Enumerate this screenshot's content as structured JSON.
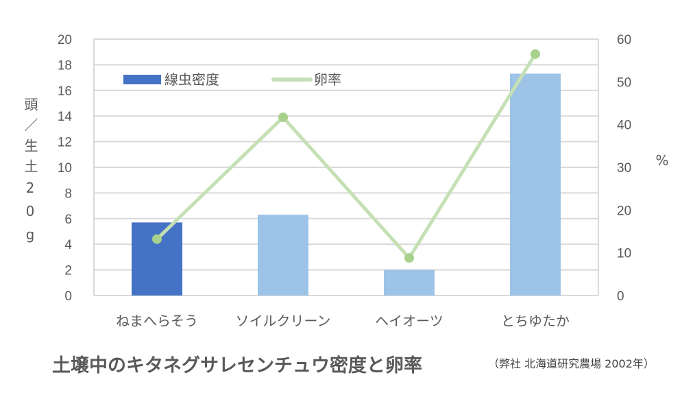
{
  "chart_data": {
    "type": "bar+line",
    "title": "土壌中のキタネグサレセンチュウ密度と卵率",
    "source": "（弊社 北海道研究農場 2002年）",
    "categories": [
      "ねまへらそう",
      "ソイルクリーン",
      "ヘイオーツ",
      "とちゆたか"
    ],
    "series": [
      {
        "name": "線虫密度",
        "type": "bar",
        "axis": "left",
        "values": [
          5.7,
          6.3,
          2.0,
          17.3
        ],
        "colors": [
          "#4472C4",
          "#9DC3E6",
          "#9DC3E6",
          "#9DC3E6"
        ]
      },
      {
        "name": "卵率",
        "type": "line",
        "axis": "right",
        "values": [
          13.2,
          41.7,
          8.8,
          56.5
        ],
        "color": "#C5E0B4",
        "marker_color": "#A9D18E"
      }
    ],
    "ylabel": "頭／生土20g",
    "y2label": "%",
    "ylim": [
      0,
      20
    ],
    "yticks": [
      0,
      2,
      4,
      6,
      8,
      10,
      12,
      14,
      16,
      18,
      20
    ],
    "y2lim": [
      0,
      60
    ],
    "y2ticks": [
      0,
      10,
      20,
      30,
      40,
      50,
      60
    ],
    "grid": true,
    "legend": "top-left"
  }
}
